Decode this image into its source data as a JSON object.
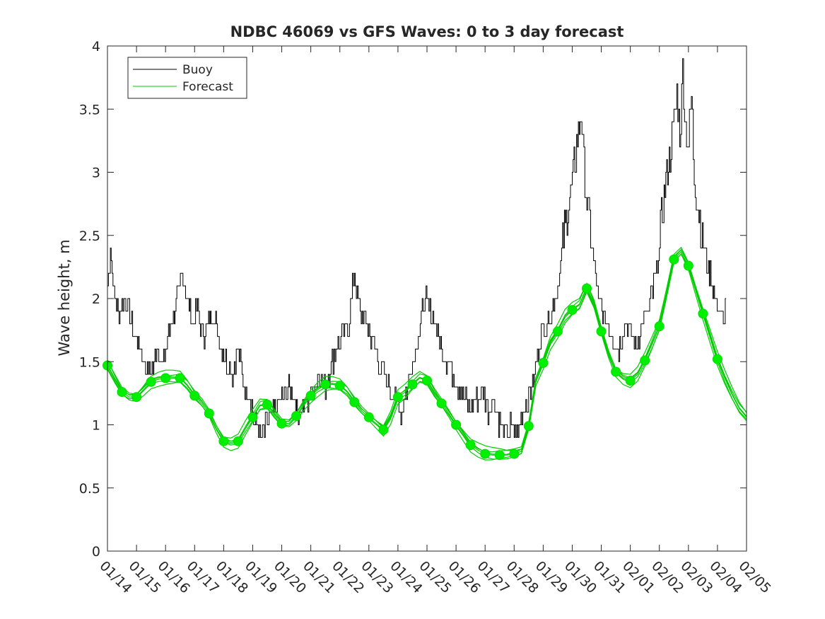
{
  "chart_data": {
    "type": "line",
    "title": "NDBC 46069 vs GFS Waves: 0 to 3 day forecast",
    "xlabel": "",
    "ylabel": "Wave height, m",
    "xlim": [
      0,
      22
    ],
    "ylim": [
      0,
      4
    ],
    "x_ticks": [
      0,
      1,
      2,
      3,
      4,
      5,
      6,
      7,
      8,
      9,
      10,
      11,
      12,
      13,
      14,
      15,
      16,
      17,
      18,
      19,
      20,
      21,
      22
    ],
    "x_tick_labels": [
      "01/14",
      "01/15",
      "01/16",
      "01/17",
      "01/18",
      "01/19",
      "01/20",
      "01/21",
      "01/22",
      "01/23",
      "01/24",
      "01/25",
      "01/26",
      "01/27",
      "01/28",
      "01/29",
      "01/30",
      "01/31",
      "02/01",
      "02/02",
      "02/03",
      "02/04",
      "02/05"
    ],
    "y_ticks": [
      0,
      0.5,
      1,
      1.5,
      2,
      2.5,
      3,
      3.5,
      4
    ],
    "y_tick_labels": [
      "0",
      "0.5",
      "1",
      "1.5",
      "2",
      "2.5",
      "3",
      "3.5",
      "4"
    ],
    "legend": {
      "placement": "top-left",
      "entries": [
        {
          "name": "Buoy",
          "color": "#000000"
        },
        {
          "name": "Forecast",
          "color": "#00cc00"
        }
      ]
    },
    "series": [
      {
        "name": "Buoy",
        "color": "#000000",
        "x": [
          0,
          0.1,
          0.25,
          0.4,
          0.6,
          0.8,
          1.0,
          1.25,
          1.5,
          1.7,
          1.9,
          2.1,
          2.3,
          2.6,
          2.9,
          3.1,
          3.3,
          3.6,
          3.85,
          4.1,
          4.3,
          4.5,
          4.7,
          4.9,
          5.1,
          5.3,
          5.5,
          5.7,
          6.0,
          6.3,
          6.6,
          6.9,
          7.1,
          7.3,
          7.5,
          7.7,
          7.9,
          8.1,
          8.3,
          8.5,
          8.7,
          8.9,
          9.1,
          9.3,
          9.5,
          9.7,
          9.9,
          10.1,
          10.3,
          10.5,
          10.7,
          10.9,
          11.1,
          11.3,
          11.5,
          11.7,
          11.9,
          12.1,
          12.3,
          12.5,
          12.7,
          12.9,
          13.1,
          13.3,
          13.5,
          13.7,
          13.9,
          14.1,
          14.3,
          14.5,
          14.7,
          14.9,
          15.1,
          15.3,
          15.5,
          15.7,
          15.85,
          16.0,
          16.15,
          16.3,
          16.4,
          16.5,
          16.6,
          16.7,
          16.8,
          16.9,
          17.05,
          17.2,
          17.4,
          17.6,
          17.8,
          18.0,
          18.2,
          18.4,
          18.6,
          18.8,
          19.0,
          19.1,
          19.25,
          19.4,
          19.5,
          19.6,
          19.7,
          19.8,
          19.9,
          20.0,
          20.1,
          20.2,
          20.3,
          20.45,
          20.6,
          20.75,
          20.9,
          21.05,
          21.2,
          21.3
        ],
        "values": [
          2.1,
          2.4,
          2.0,
          1.9,
          2.0,
          1.8,
          1.7,
          1.5,
          1.4,
          1.6,
          1.5,
          1.7,
          1.9,
          2.2,
          1.8,
          1.9,
          1.7,
          1.9,
          1.7,
          1.5,
          1.4,
          1.6,
          1.3,
          1.2,
          1.0,
          0.9,
          1.0,
          1.1,
          1.2,
          1.3,
          1.1,
          1.2,
          1.3,
          1.4,
          1.3,
          1.5,
          1.6,
          1.7,
          1.8,
          2.2,
          1.9,
          1.8,
          1.7,
          1.5,
          1.4,
          1.3,
          1.2,
          1.1,
          1.3,
          1.5,
          1.7,
          2.0,
          1.9,
          1.8,
          1.6,
          1.5,
          1.4,
          1.3,
          1.2,
          1.1,
          1.2,
          1.3,
          1.1,
          1.2,
          1.0,
          0.9,
          1.0,
          0.9,
          1.1,
          1.2,
          1.4,
          1.7,
          1.8,
          1.9,
          2.1,
          2.5,
          2.7,
          2.9,
          3.2,
          3.5,
          3.0,
          2.8,
          2.6,
          2.4,
          2.2,
          2.0,
          1.9,
          1.8,
          1.7,
          1.6,
          1.8,
          1.7,
          1.6,
          1.8,
          1.9,
          2.1,
          2.4,
          2.7,
          3.0,
          3.2,
          3.4,
          3.6,
          3.3,
          3.8,
          3.4,
          3.2,
          3.6,
          3.0,
          2.8,
          2.5,
          2.3,
          2.2,
          2.0,
          1.9,
          1.8,
          2.0
        ]
      },
      {
        "name": "Forecast",
        "color": "#00cc00",
        "x": [
          0,
          0.25,
          0.5,
          0.75,
          1.0,
          1.25,
          1.5,
          1.75,
          2.0,
          2.25,
          2.5,
          2.75,
          3.0,
          3.25,
          3.5,
          3.75,
          4.0,
          4.25,
          4.5,
          4.75,
          5.0,
          5.25,
          5.5,
          5.75,
          6.0,
          6.25,
          6.5,
          6.75,
          7.0,
          7.25,
          7.5,
          7.75,
          8.0,
          8.25,
          8.5,
          8.75,
          9.0,
          9.25,
          9.5,
          9.75,
          10.0,
          10.25,
          10.5,
          10.75,
          11.0,
          11.25,
          11.5,
          11.75,
          12.0,
          12.25,
          12.5,
          12.75,
          13.0,
          13.25,
          13.5,
          13.75,
          14.0,
          14.25,
          14.5,
          14.75,
          15.0,
          15.25,
          15.5,
          15.75,
          16.0,
          16.25,
          16.5,
          16.75,
          17.0,
          17.25,
          17.5,
          17.75,
          18.0,
          18.25,
          18.5,
          18.75,
          19.0,
          19.25,
          19.5,
          19.75,
          20.0,
          20.25,
          20.5,
          20.75,
          21.0,
          21.25,
          21.5,
          21.75,
          22.0
        ],
        "values": [
          1.47,
          1.36,
          1.26,
          1.22,
          1.22,
          1.28,
          1.34,
          1.36,
          1.37,
          1.37,
          1.37,
          1.31,
          1.23,
          1.17,
          1.09,
          0.97,
          0.87,
          0.85,
          0.87,
          0.97,
          1.06,
          1.15,
          1.16,
          1.08,
          1.01,
          1.01,
          1.07,
          1.16,
          1.23,
          1.28,
          1.32,
          1.32,
          1.31,
          1.26,
          1.18,
          1.11,
          1.06,
          1.01,
          0.96,
          1.06,
          1.22,
          1.26,
          1.32,
          1.37,
          1.35,
          1.25,
          1.17,
          1.09,
          1.0,
          0.92,
          0.84,
          0.8,
          0.77,
          0.76,
          0.76,
          0.76,
          0.77,
          0.79,
          0.99,
          1.35,
          1.49,
          1.65,
          1.74,
          1.85,
          1.91,
          1.95,
          2.08,
          1.95,
          1.74,
          1.56,
          1.42,
          1.37,
          1.35,
          1.4,
          1.51,
          1.64,
          1.78,
          2.04,
          2.31,
          2.37,
          2.26,
          2.07,
          1.88,
          1.7,
          1.52,
          1.37,
          1.24,
          1.13,
          1.06
        ]
      }
    ],
    "forecast_markers": {
      "x": [
        0,
        0.5,
        1.0,
        1.5,
        2.0,
        2.5,
        3.0,
        3.5,
        4.0,
        4.5,
        5.0,
        5.5,
        6.0,
        6.5,
        7.0,
        7.5,
        8.0,
        8.5,
        9.0,
        9.5,
        10.0,
        10.5,
        11.0,
        11.5,
        12.0,
        12.5,
        13.0,
        13.5,
        14.0,
        14.5,
        15.0,
        15.5,
        16.0,
        16.5,
        17.0,
        17.5,
        18.0,
        18.5,
        19.0,
        19.5,
        20.0,
        20.5,
        21.0
      ],
      "values": [
        1.47,
        1.26,
        1.22,
        1.34,
        1.37,
        1.37,
        1.23,
        1.09,
        0.87,
        0.87,
        1.06,
        1.16,
        1.01,
        1.07,
        1.23,
        1.32,
        1.31,
        1.18,
        1.06,
        0.96,
        1.22,
        1.32,
        1.35,
        1.17,
        1.0,
        0.84,
        0.77,
        0.76,
        0.77,
        0.99,
        1.49,
        1.74,
        1.91,
        2.08,
        1.74,
        1.42,
        1.35,
        1.51,
        1.78,
        2.31,
        2.26,
        1.88,
        1.52
      ]
    }
  }
}
